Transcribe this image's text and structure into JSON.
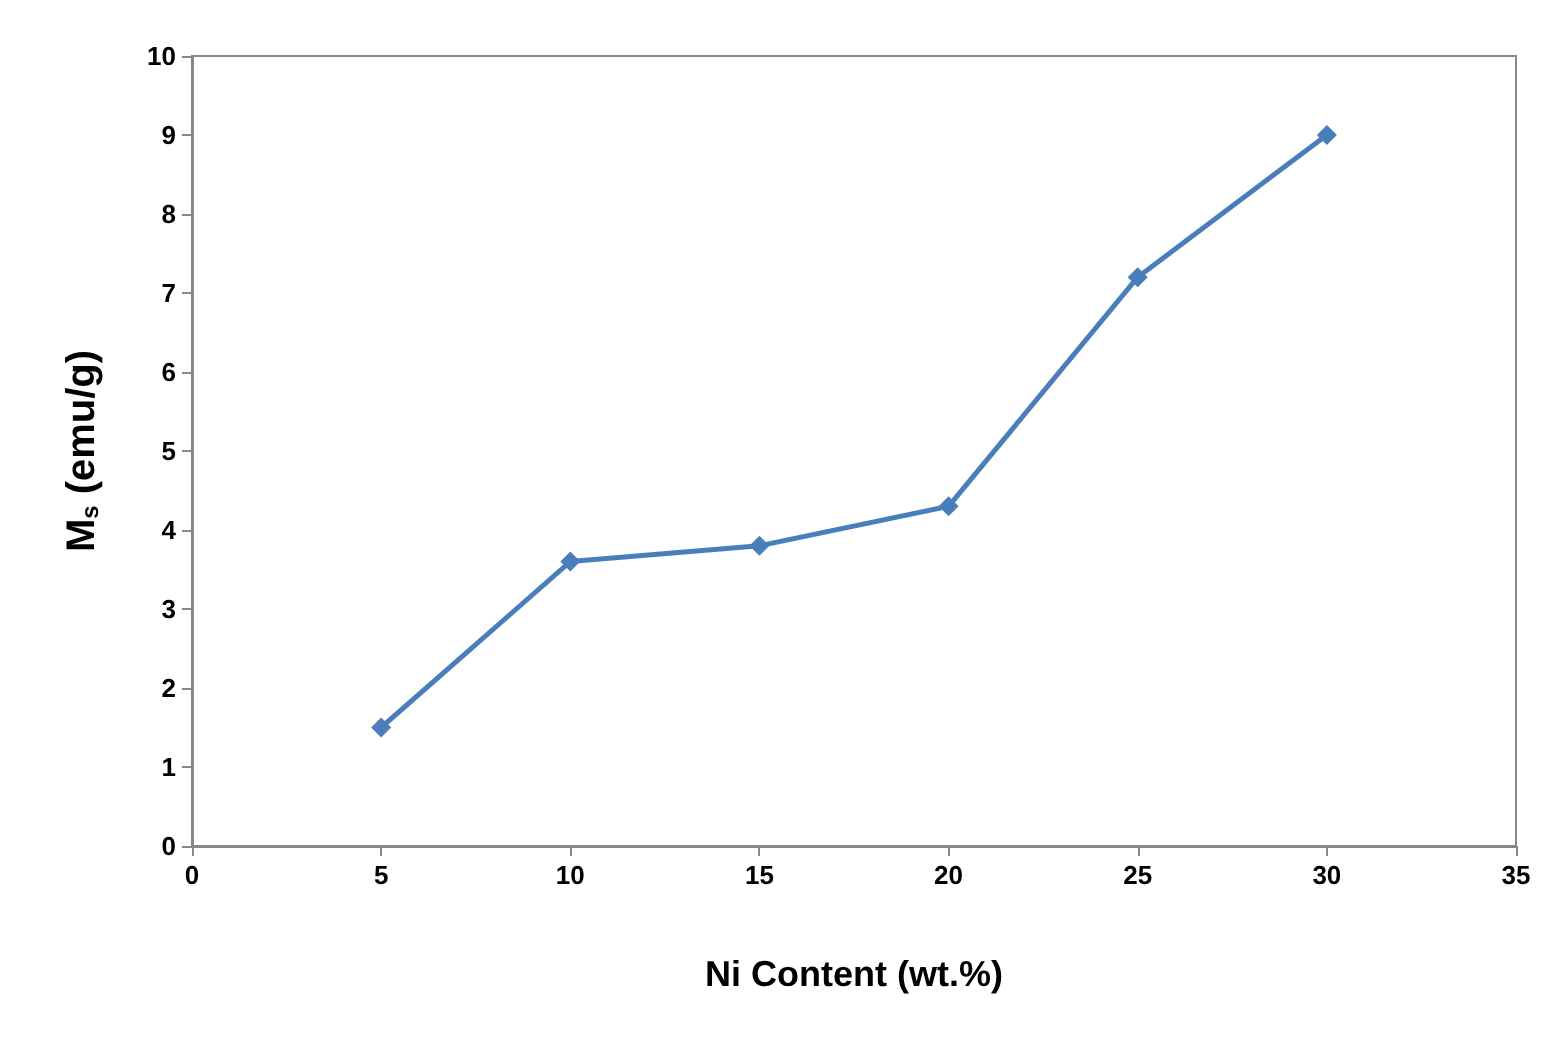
{
  "chart_data": {
    "type": "line",
    "xlabel": "Ni Content (wt.%)",
    "ylabel": "M$_{s}$ (emu/g)",
    "x": [
      5,
      10,
      15,
      20,
      25,
      30
    ],
    "series": [
      {
        "color": "#4a7ebb",
        "values": [
          1.5,
          3.6,
          3.8,
          4.3,
          7.2,
          9.0
        ]
      }
    ],
    "xlim": [
      0,
      35
    ],
    "xticks": [
      0,
      5,
      10,
      15,
      20,
      25,
      30,
      35
    ],
    "ylim": [
      0,
      10
    ],
    "yticks": [
      0,
      1,
      2,
      3,
      4,
      5,
      6,
      7,
      8,
      9,
      10
    ],
    "grid": false,
    "marker": "diamond",
    "line_style": "solid"
  }
}
